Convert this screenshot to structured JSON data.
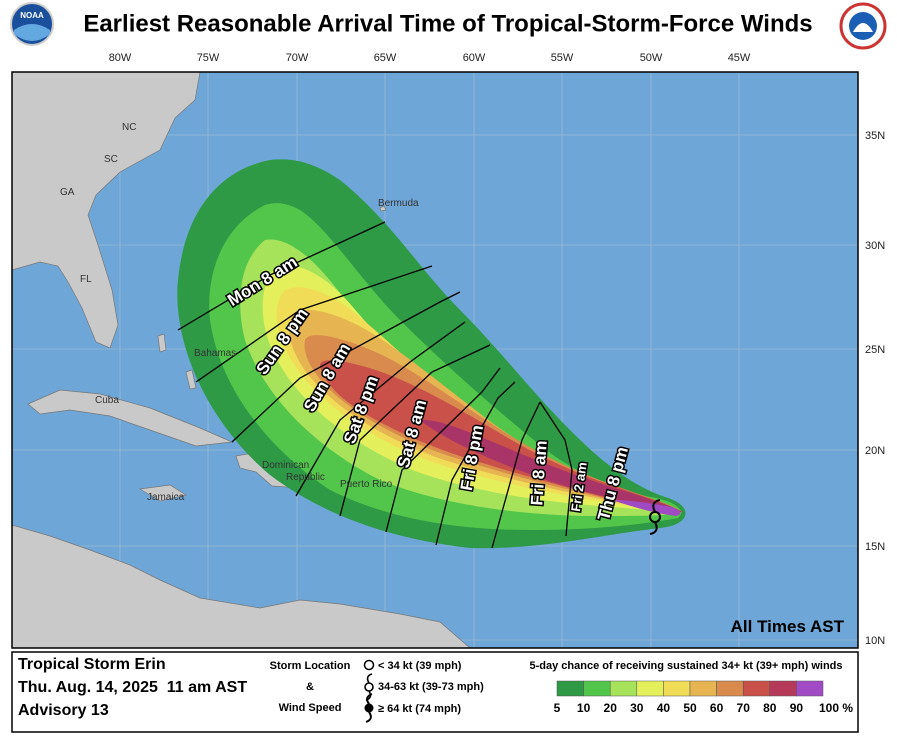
{
  "header": {
    "title": "Earliest Reasonable Arrival Time of Tropical-Storm-Force Winds",
    "left_logo": "NOAA"
  },
  "map": {
    "longitude_labels": [
      "80W",
      "75W",
      "70W",
      "65W",
      "60W",
      "55W",
      "50W",
      "45W"
    ],
    "latitude_labels": [
      "35N",
      "30N",
      "25N",
      "20N",
      "15N",
      "10N"
    ],
    "place_labels": [
      "NC",
      "SC",
      "GA",
      "FL",
      "Bermuda",
      "Bahamas",
      "Cuba",
      "Jamaica",
      "Dominican",
      "Republic",
      "Puerto Rico"
    ],
    "arrival_time_labels": [
      "Mon 8 am",
      "Sun 8 pm",
      "Sun 8 am",
      "Sat 8 pm",
      "Sat 8 am",
      "Fri 8 pm",
      "Fri 8 am",
      "Fri 2 am",
      "Thu 8 pm"
    ],
    "time_zone_note": "All Times AST"
  },
  "legend": {
    "storm_name": "Tropical Storm Erin",
    "issued": "Thu. Aug. 14, 2025  11 am AST",
    "advisory": "Advisory 13",
    "storm_location_title": "Storm Location",
    "ampersand": "&",
    "wind_speed_title": "Wind Speed",
    "symbols": [
      "< 34 kt (39 mph)",
      "34-63 kt (39-73 mph)",
      "≥ 64 kt (74 mph)"
    ],
    "probability_title": "5-day chance of receiving sustained 34+ kt (39+ mph) winds",
    "scale_labels": [
      "5",
      "10",
      "20",
      "30",
      "40",
      "50",
      "60",
      "70",
      "80",
      "90",
      "100 %"
    ]
  }
}
